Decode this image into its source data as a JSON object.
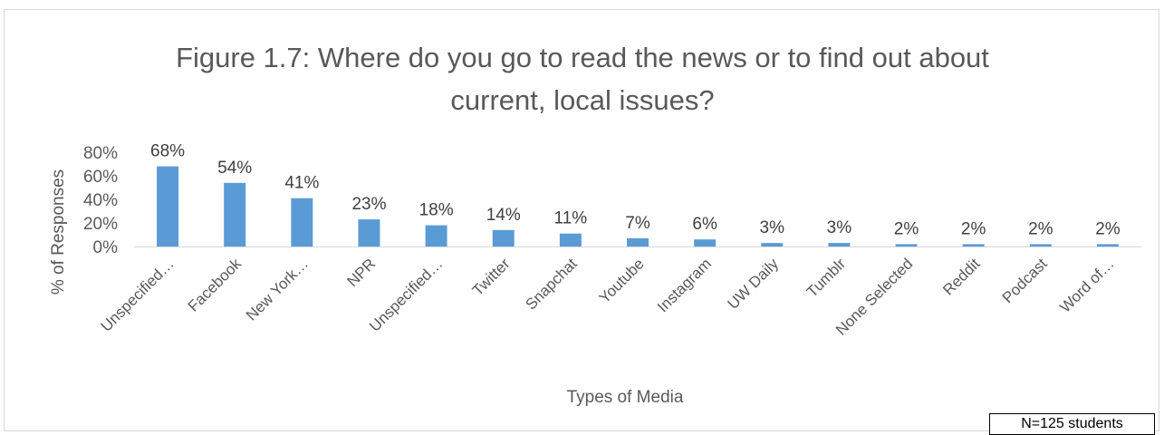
{
  "chart_data": {
    "type": "bar",
    "title_lines": [
      "Figure 1.7: Where do you go to read the news or to find out about",
      "current, local issues?"
    ],
    "xlabel": "Types of Media",
    "ylabel": "% of Responses",
    "categories": [
      "Unspecified…",
      "Facebook",
      "New York…",
      "NPR",
      "Unspecified…",
      "Twitter",
      "Snapchat",
      "Youtube",
      "Instagram",
      "UW Daily",
      "Tumblr",
      "None Selected",
      "Reddit",
      "Podcast",
      "Word of…"
    ],
    "values": [
      68,
      54,
      41,
      23,
      18,
      14,
      11,
      7,
      6,
      3,
      3,
      2,
      2,
      2,
      2
    ],
    "data_labels": [
      "68%",
      "54%",
      "41%",
      "23%",
      "18%",
      "14%",
      "11%",
      "7%",
      "6%",
      "3%",
      "3%",
      "2%",
      "2%",
      "2%",
      "2%"
    ],
    "yticks": [
      0,
      20,
      40,
      60,
      80
    ],
    "ytick_labels": [
      "0%",
      "20%",
      "40%",
      "60%",
      "80%"
    ],
    "ylim": [
      0,
      80
    ],
    "grid": false,
    "legend": "none",
    "bar_color": "#5b9bd5"
  },
  "note": "N=125 students"
}
